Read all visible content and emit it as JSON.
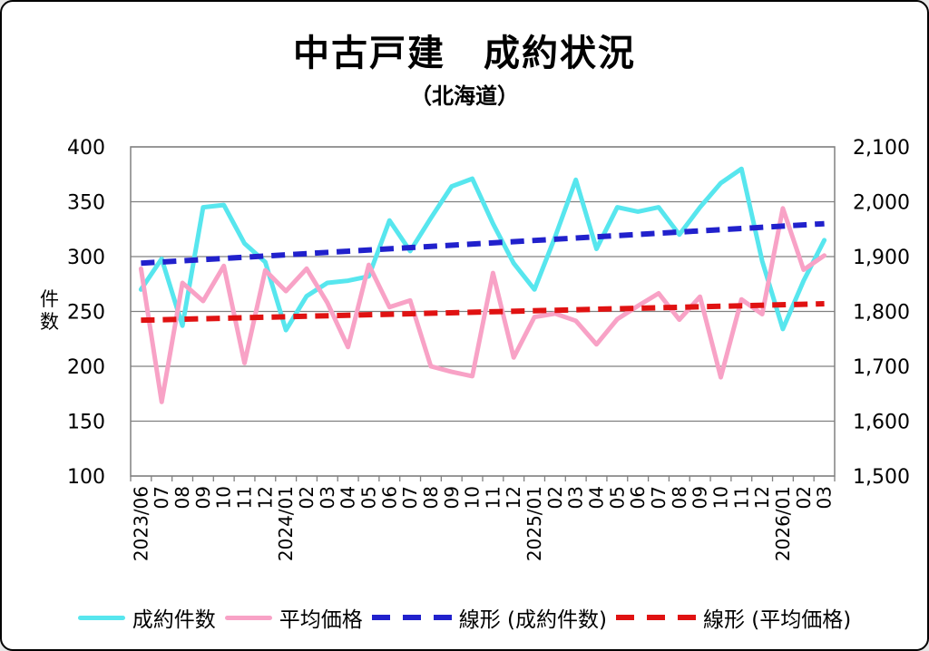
{
  "title": "中古戸建　成約状況",
  "subtitle": "（北海道）",
  "y_axis_title": "件\n数",
  "legend": {
    "items": [
      {
        "label": "成約件数",
        "style": "solid",
        "color_key": "count_line"
      },
      {
        "label": "平均価格",
        "style": "solid",
        "color_key": "price_line"
      },
      {
        "label": "線形 (成約件数)",
        "style": "dashed",
        "color_key": "count_trend"
      },
      {
        "label": "線形 (平均価格)",
        "style": "dashed",
        "color_key": "price_trend"
      }
    ]
  },
  "colors": {
    "count_line": "#57E6EE",
    "price_line": "#F8A2C6",
    "count_trend": "#2121CC",
    "price_trend": "#E01212",
    "grid": "#808080",
    "text": "#000000"
  },
  "chart_data": {
    "type": "line",
    "title": "中古戸建　成約状況",
    "subtitle": "（北海道）",
    "grid": true,
    "legend_position": "bottom",
    "categories": [
      "2023/06",
      "07",
      "08",
      "09",
      "10",
      "11",
      "12",
      "2024/01",
      "02",
      "03",
      "04",
      "05",
      "06",
      "07",
      "08",
      "09",
      "10",
      "11",
      "12",
      "2025/01",
      "02",
      "03",
      "04",
      "05",
      "06",
      "07",
      "08",
      "09",
      "10",
      "11",
      "12",
      "2026/01",
      "02",
      "03"
    ],
    "series": [
      {
        "name": "成約件数",
        "axis": "left",
        "color_key": "count_line",
        "values": [
          270,
          298,
          237,
          345,
          347,
          312,
          295,
          233,
          264,
          276,
          278,
          282,
          333,
          305,
          335,
          364,
          371,
          330,
          294,
          270,
          318,
          370,
          307,
          345,
          341,
          345,
          320,
          345,
          367,
          380,
          296,
          234,
          278,
          315
        ]
      },
      {
        "name": "平均価格",
        "axis": "right",
        "color_key": "price_line",
        "values": [
          1878,
          1635,
          1852,
          1819,
          1883,
          1706,
          1875,
          1837,
          1878,
          1816,
          1735,
          1885,
          1808,
          1820,
          1700,
          1690,
          1682,
          1870,
          1716,
          1790,
          1796,
          1783,
          1740,
          1786,
          1810,
          1833,
          1785,
          1827,
          1680,
          1822,
          1795,
          1988,
          1876,
          1902
        ]
      }
    ],
    "trendlines": [
      {
        "name": "線形 (成約件数)",
        "axis": "left",
        "color_key": "count_trend",
        "start": 294,
        "end": 330
      },
      {
        "name": "線形 (平均価格)",
        "axis": "right",
        "color_key": "price_trend",
        "start": 1784,
        "end": 1814
      }
    ],
    "left_axis": {
      "label": "件数",
      "min": 100,
      "max": 400,
      "ticks": [
        400,
        350,
        300,
        250,
        200,
        150,
        100
      ]
    },
    "right_axis": {
      "min": 1500,
      "max": 2100,
      "ticks": [
        2100,
        2000,
        1900,
        1800,
        1700,
        1600,
        1500
      ]
    }
  }
}
